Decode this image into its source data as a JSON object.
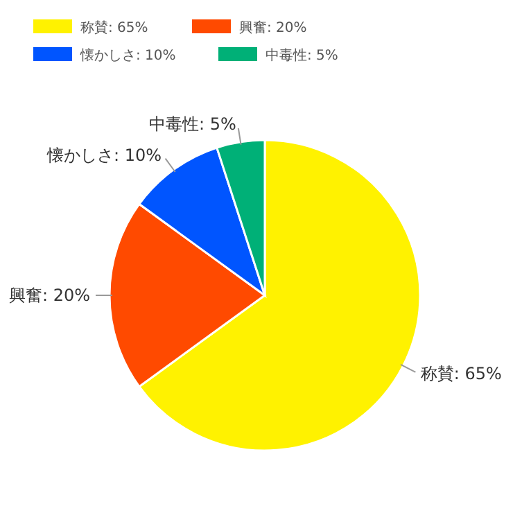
{
  "chart_data": {
    "type": "pie",
    "categories": [
      "称賛",
      "興奮",
      "懐かしさ",
      "中毒性"
    ],
    "values": [
      65,
      20,
      10,
      5
    ],
    "value_labels": [
      "65%",
      "20%",
      "10%",
      "5%"
    ],
    "colors": [
      "#fff200",
      "#ff4a00",
      "#0055ff",
      "#00b077"
    ],
    "legend": "top"
  }
}
